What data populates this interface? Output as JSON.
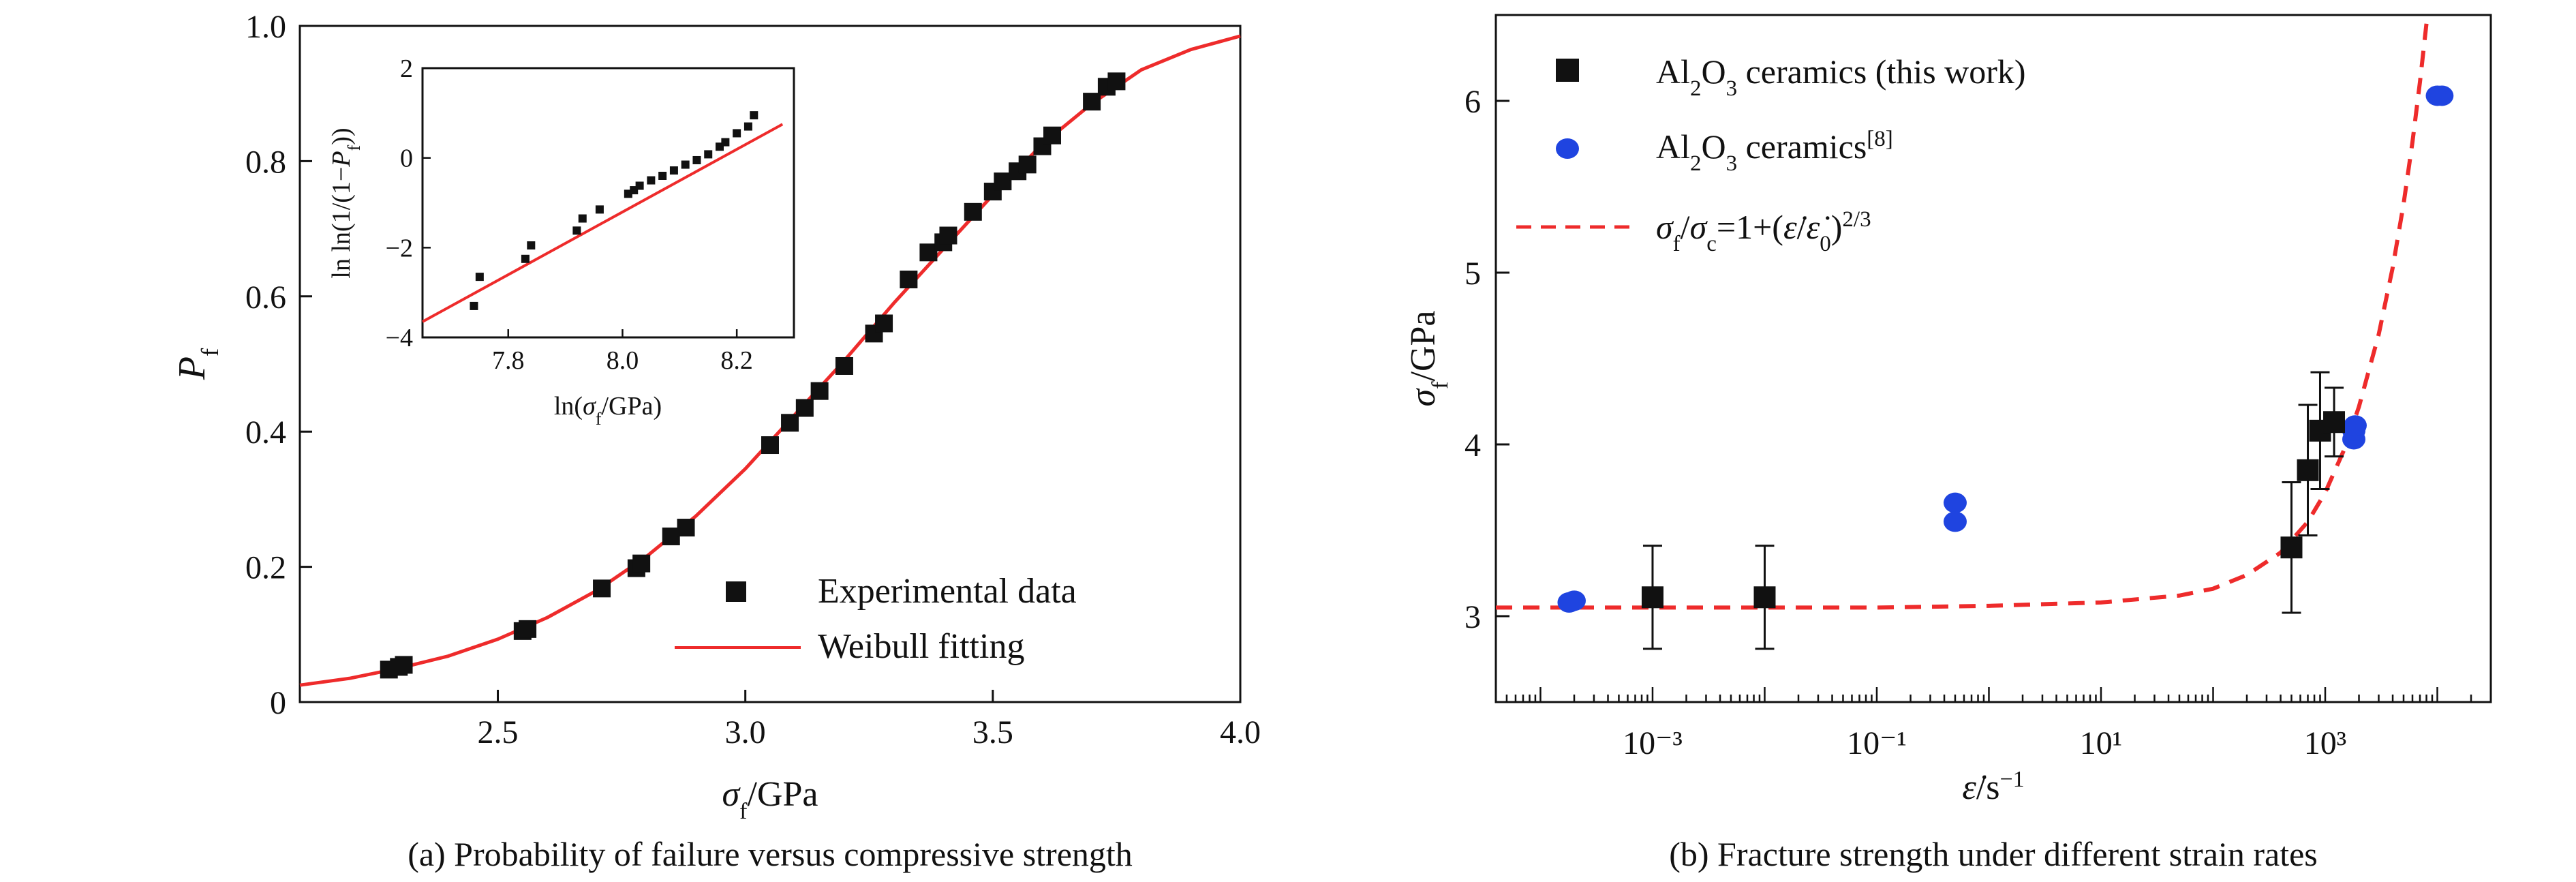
{
  "chart_data": [
    {
      "type": "scatter",
      "caption": "(a) Probability of failure versus compressive strength",
      "xlabel": "σf/GPa",
      "ylabel": "Pf",
      "xlim": [
        2.1,
        4.0
      ],
      "ylim": [
        0,
        1.0
      ],
      "xticks": [
        2.5,
        3.0,
        3.5,
        4.0
      ],
      "xtick_labels": [
        "2.5",
        "3.0",
        "3.5",
        "4.0"
      ],
      "yticks": [
        0,
        0.2,
        0.4,
        0.6,
        0.8,
        1.0
      ],
      "ytick_labels": [
        "0",
        "0.2",
        "0.4",
        "0.6",
        "0.8",
        "1.0"
      ],
      "legend_position": "bottom-right",
      "legend": {
        "experimental": "Experimental data",
        "fit": "Weibull fitting"
      },
      "colors": {
        "fit": "#ee2b2b",
        "points": "#111111"
      },
      "series": [
        {
          "name": "Experimental data",
          "kind": "points",
          "x": [
            2.28,
            2.3,
            2.31,
            2.55,
            2.56,
            2.71,
            2.78,
            2.79,
            2.85,
            2.88,
            3.05,
            3.09,
            3.12,
            3.15,
            3.2,
            3.26,
            3.28,
            3.33,
            3.37,
            3.4,
            3.41,
            3.46,
            3.5,
            3.52,
            3.55,
            3.57,
            3.6,
            3.62,
            3.7,
            3.73,
            3.75
          ],
          "y": [
            0.048,
            0.052,
            0.055,
            0.105,
            0.108,
            0.168,
            0.198,
            0.205,
            0.245,
            0.258,
            0.38,
            0.413,
            0.435,
            0.46,
            0.497,
            0.545,
            0.56,
            0.625,
            0.665,
            0.68,
            0.69,
            0.725,
            0.755,
            0.77,
            0.785,
            0.795,
            0.822,
            0.838,
            0.888,
            0.91,
            0.918
          ]
        },
        {
          "name": "Weibull fitting",
          "kind": "line",
          "x": [
            2.1,
            2.2,
            2.3,
            2.4,
            2.5,
            2.6,
            2.7,
            2.8,
            2.9,
            3.0,
            3.1,
            3.2,
            3.3,
            3.4,
            3.5,
            3.6,
            3.7,
            3.8,
            3.9,
            4.0
          ],
          "y": [
            0.025,
            0.035,
            0.05,
            0.068,
            0.093,
            0.125,
            0.165,
            0.215,
            0.275,
            0.345,
            0.425,
            0.505,
            0.59,
            0.67,
            0.75,
            0.825,
            0.885,
            0.935,
            0.965,
            0.985
          ]
        }
      ],
      "inset": {
        "xlabel": "ln(σf/GPa)",
        "ylabel": "ln ln(1/(1−Pf))",
        "xlim": [
          7.65,
          8.3
        ],
        "ylim": [
          -4,
          2
        ],
        "xticks": [
          7.8,
          8.0,
          8.2
        ],
        "xtick_labels": [
          "7.8",
          "8.0",
          "8.2"
        ],
        "yticks": [
          -4,
          -2,
          0,
          2
        ],
        "ytick_labels": [
          "−4",
          "−2",
          "0",
          "2"
        ],
        "points": {
          "x": [
            7.74,
            7.75,
            7.83,
            7.84,
            7.92,
            7.93,
            7.96,
            8.01,
            8.02,
            8.03,
            8.05,
            8.07,
            8.09,
            8.11,
            8.13,
            8.15,
            8.17,
            8.18,
            8.2,
            8.22,
            8.23
          ],
          "y": [
            -3.3,
            -2.65,
            -2.25,
            -1.95,
            -1.62,
            -1.35,
            -1.15,
            -0.8,
            -0.72,
            -0.62,
            -0.5,
            -0.4,
            -0.28,
            -0.15,
            -0.05,
            0.08,
            0.25,
            0.35,
            0.55,
            0.7,
            0.95
          ]
        },
        "fit": {
          "x": [
            7.65,
            8.28
          ],
          "y": [
            -3.65,
            0.75
          ]
        }
      }
    },
    {
      "type": "scatter",
      "caption": "(b) Fracture strength under different strain rates",
      "xlabel": "ε̇/s⁻¹",
      "ylabel": "σf/GPa",
      "x_scale": "log",
      "xlim": [
        4e-05,
        30000
      ],
      "ylim": [
        2.5,
        6.5
      ],
      "xticks": [
        0.001,
        0.1,
        10,
        1000
      ],
      "xtick_labels": [
        "10⁻³",
        "10⁻¹",
        "10¹",
        "10³"
      ],
      "yticks": [
        3,
        4,
        5,
        6
      ],
      "ytick_labels": [
        "3",
        "4",
        "5",
        "6"
      ],
      "legend_position": "top-left",
      "legend": {
        "this_work": "Al₂O₃ ceramics (this work)",
        "ref": "Al₂O₃ ceramics[8]",
        "model": "σf/σc=1+(ε̇/ε̇0)2/3"
      },
      "colors": {
        "this_work": "#111111",
        "ref": "#1f44e0",
        "model": "#ee2b2b"
      },
      "series": [
        {
          "name": "Al₂O₃ ceramics (this work)",
          "kind": "points_with_error",
          "x": [
            0.001,
            0.01,
            500,
            700,
            900,
            1200
          ],
          "y": [
            3.11,
            3.11,
            3.4,
            3.85,
            4.08,
            4.13
          ],
          "err": [
            0.3,
            0.3,
            0.38,
            0.38,
            0.34,
            0.2
          ]
        },
        {
          "name": "Al₂O₃ ceramics[8]",
          "kind": "points",
          "x": [
            0.00018,
            0.0002,
            0.5,
            0.5,
            1800,
            1800,
            1850,
            10000,
            11000
          ],
          "y": [
            3.08,
            3.09,
            3.66,
            3.55,
            4.03,
            4.08,
            4.11,
            6.03,
            6.03
          ]
        },
        {
          "name": "σf/σc=1+(ε̇/ε̇0)2/3",
          "kind": "dashed_line",
          "x": [
            4e-05,
            0.0001,
            0.001,
            0.01,
            0.1,
            1,
            10,
            50,
            100,
            200,
            400,
            700,
            1000,
            1500,
            2000,
            3000,
            4000,
            5000,
            6000,
            7000,
            8000
          ],
          "y": [
            3.05,
            3.05,
            3.05,
            3.05,
            3.05,
            3.06,
            3.08,
            3.12,
            3.16,
            3.24,
            3.37,
            3.55,
            3.72,
            3.98,
            4.22,
            4.64,
            5.03,
            5.4,
            5.76,
            6.11,
            6.45
          ]
        }
      ]
    }
  ]
}
